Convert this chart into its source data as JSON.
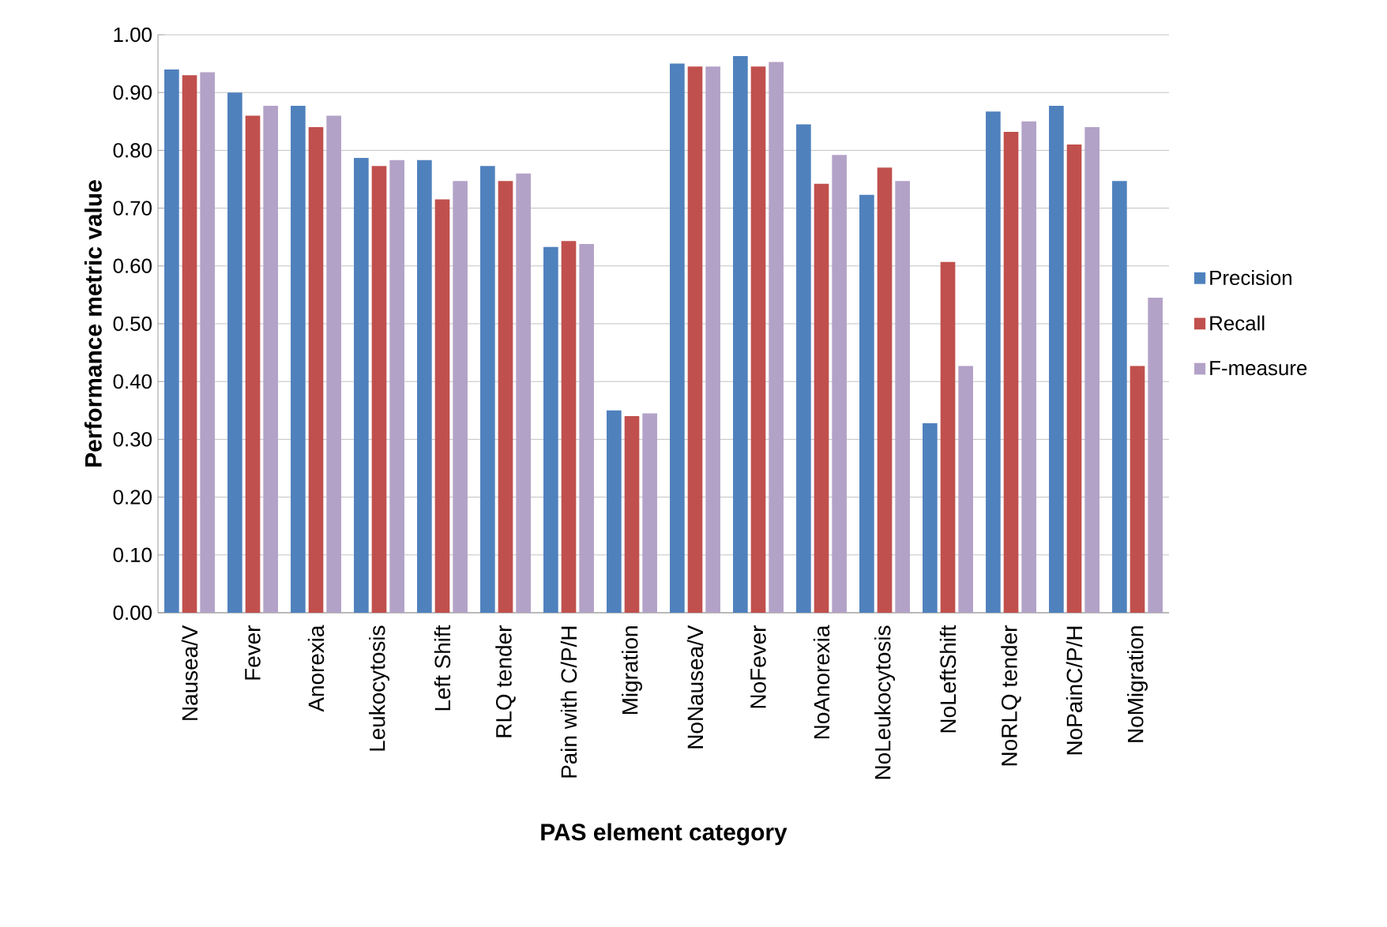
{
  "chart_data": {
    "type": "bar",
    "xlabel": "PAS element category",
    "ylabel": "Performance metric value",
    "categories": [
      "Nausea/V",
      "Fever",
      "Anorexia",
      "Leukocytosis",
      "Left Shift",
      "RLQ tender",
      "Pain with C/P/H",
      "Migration",
      "NoNausea/V",
      "NoFever",
      "NoAnorexia",
      "NoLeukocytosis",
      "NoLeftShift",
      "NoRLQ tender",
      "NoPainC/P/H",
      "NoMigration"
    ],
    "series": [
      {
        "name": "Precision",
        "color": "#4f81bd",
        "values": [
          0.94,
          0.9,
          0.877,
          0.787,
          0.783,
          0.773,
          0.633,
          0.35,
          0.95,
          0.963,
          0.845,
          0.723,
          0.328,
          0.867,
          0.877,
          0.747
        ]
      },
      {
        "name": "Recall",
        "color": "#c0504d",
        "values": [
          0.93,
          0.86,
          0.84,
          0.773,
          0.715,
          0.747,
          0.643,
          0.34,
          0.945,
          0.945,
          0.742,
          0.77,
          0.607,
          0.832,
          0.81,
          0.427
        ]
      },
      {
        "name": "F-measure",
        "color": "#b3a2c7",
        "values": [
          0.935,
          0.877,
          0.86,
          0.783,
          0.747,
          0.76,
          0.638,
          0.345,
          0.945,
          0.953,
          0.792,
          0.747,
          0.427,
          0.85,
          0.84,
          0.545
        ]
      }
    ],
    "ylim": [
      0,
      1
    ],
    "yticks": [
      {
        "value": 0,
        "label": "0.00"
      },
      {
        "value": 0.1,
        "label": "0.10"
      },
      {
        "value": 0.2,
        "label": "0.20"
      },
      {
        "value": 0.3,
        "label": "0.30"
      },
      {
        "value": 0.4,
        "label": "0.40"
      },
      {
        "value": 0.5,
        "label": "0.50"
      },
      {
        "value": 0.6,
        "label": "0.60"
      },
      {
        "value": 0.7,
        "label": "0.70"
      },
      {
        "value": 0.8,
        "label": "0.80"
      },
      {
        "value": 0.9,
        "label": "0.90"
      },
      {
        "value": 1,
        "label": "1.00"
      }
    ],
    "grid": "y",
    "legend": "right"
  }
}
